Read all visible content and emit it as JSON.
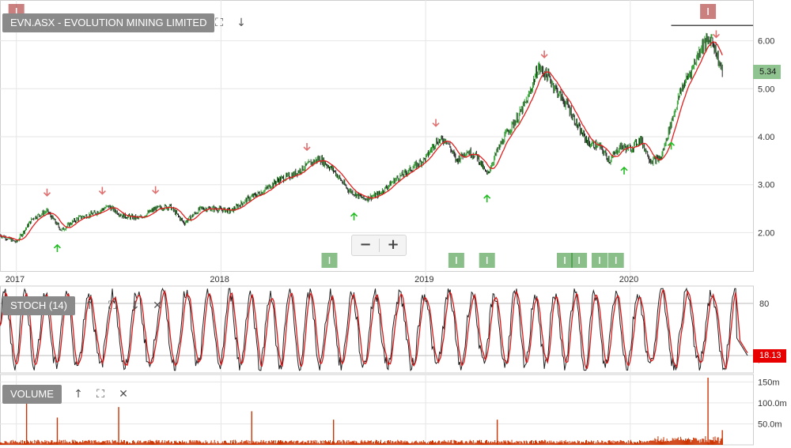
{
  "header": {
    "symbol_label": "EVN.ASX - EVOLUTION MINING LIMITED",
    "fullscreen_icon": "fullscreen-icon",
    "download_icon": "arrow-down-icon"
  },
  "zoom": {
    "minus_label": "−",
    "plus_label": "+"
  },
  "price_tag": "5.34",
  "stoch_tag": "18.13",
  "stoch_panel": {
    "label": "STOCH (14)",
    "icons": [
      "arrow-up-icon",
      "fullscreen-icon",
      "arrow-down-icon",
      "close-icon"
    ]
  },
  "volume_panel": {
    "label": "VOLUME",
    "icons": [
      "arrow-up-icon",
      "fullscreen-icon",
      "close-icon"
    ]
  },
  "colors": {
    "up_candle": "#2e9e2e",
    "down_candle": "#222222",
    "ma": "#e02020",
    "sell_arrow": "#e07070",
    "buy_arrow": "#22bb22",
    "volume": "#cc3300",
    "grid": "#e6e6e6",
    "marker_green": "#2a8a2a",
    "marker_red": "#a01818"
  },
  "chart_data": [
    {
      "type": "line",
      "name": "price",
      "x_ticks": [
        "2017",
        "2018",
        "2019",
        "2020"
      ],
      "y_ticks": [
        "2.00",
        "3.00",
        "4.00",
        "5.00",
        "6.00"
      ],
      "ylim": [
        1.2,
        6.85
      ],
      "xlim": [
        2016.92,
        2020.6
      ],
      "last_value": 5.34,
      "resistance_level": 6.32,
      "x": [
        2016.92,
        2017.0,
        2017.08,
        2017.15,
        2017.22,
        2017.3,
        2017.38,
        2017.45,
        2017.52,
        2017.6,
        2017.68,
        2017.75,
        2017.82,
        2017.9,
        2017.97,
        2018.05,
        2018.13,
        2018.2,
        2018.28,
        2018.35,
        2018.42,
        2018.48,
        2018.55,
        2018.62,
        2018.7,
        2018.77,
        2018.85,
        2018.92,
        2019.0,
        2019.05,
        2019.1,
        2019.15,
        2019.2,
        2019.25,
        2019.3,
        2019.35,
        2019.4,
        2019.45,
        2019.5,
        2019.55,
        2019.6,
        2019.65,
        2019.7,
        2019.75,
        2019.8,
        2019.85,
        2019.9,
        2019.95,
        2020.0,
        2020.05,
        2020.1,
        2020.15,
        2020.2,
        2020.25,
        2020.3,
        2020.35,
        2020.4,
        2020.43,
        2020.45
      ],
      "y": [
        1.95,
        1.8,
        2.3,
        2.45,
        2.05,
        2.3,
        2.4,
        2.55,
        2.35,
        2.3,
        2.5,
        2.55,
        2.2,
        2.5,
        2.5,
        2.45,
        2.7,
        2.85,
        3.1,
        3.2,
        3.4,
        3.55,
        3.3,
        2.9,
        2.7,
        2.8,
        3.1,
        3.3,
        3.55,
        3.9,
        3.95,
        3.5,
        3.7,
        3.6,
        3.2,
        3.7,
        4.1,
        4.4,
        4.8,
        5.45,
        5.25,
        4.9,
        4.6,
        4.15,
        3.85,
        3.8,
        3.5,
        3.8,
        3.75,
        3.95,
        3.5,
        3.55,
        4.3,
        5.0,
        5.4,
        5.9,
        6.05,
        5.6,
        5.34
      ],
      "sell_arrows": [
        2017.15,
        2017.42,
        2017.68,
        2018.42,
        2019.05,
        2019.58,
        2020.42
      ],
      "buy_arrows": [
        2017.2,
        2018.65,
        2019.3,
        2019.97,
        2020.2
      ],
      "signal_markers": [
        {
          "x": 2018.53,
          "color": "green"
        },
        {
          "x": 2019.15,
          "color": "green"
        },
        {
          "x": 2019.3,
          "color": "green"
        },
        {
          "x": 2019.68,
          "color": "green"
        },
        {
          "x": 2019.75,
          "color": "green"
        },
        {
          "x": 2019.85,
          "color": "green"
        },
        {
          "x": 2019.93,
          "color": "green"
        },
        {
          "x": 2017.0,
          "color": "red"
        },
        {
          "x": 2020.38,
          "color": "red"
        }
      ]
    },
    {
      "type": "line",
      "name": "stochastic",
      "y_ticks": [
        "80"
      ],
      "ylim": [
        0,
        100
      ],
      "last_value": 18.13,
      "cycles": 34
    },
    {
      "type": "bar",
      "name": "volume",
      "y_ticks": [
        "150m",
        "100.0m",
        "50.0m"
      ],
      "ylim": [
        0,
        160
      ],
      "spikes": [
        {
          "x": 2017.05,
          "value": 105
        },
        {
          "x": 2017.2,
          "value": 65
        },
        {
          "x": 2017.5,
          "value": 90
        },
        {
          "x": 2018.15,
          "value": 80
        },
        {
          "x": 2018.55,
          "value": 60
        },
        {
          "x": 2019.35,
          "value": 60
        },
        {
          "x": 2020.38,
          "value": 165
        },
        {
          "x": 2020.45,
          "value": 35
        }
      ]
    }
  ]
}
